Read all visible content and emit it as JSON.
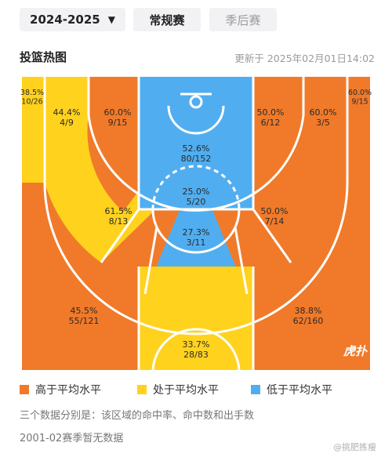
{
  "header": {
    "season_label": "2024-2025",
    "tab_regular": "常规赛",
    "tab_playoff": "季后赛"
  },
  "chart": {
    "title": "投篮热图",
    "updated": "更新于 2025年02月01日14:02"
  },
  "colors": {
    "above": "#f07a2a",
    "average": "#ffd21e",
    "below": "#50aef0"
  },
  "chart_data": {
    "type": "heatmap",
    "zones": [
      {
        "id": "left-corner-three",
        "pct": "38.5%",
        "made_attempts": "10/26",
        "level": "average"
      },
      {
        "id": "left-baseline-long-two",
        "pct": "44.4%",
        "made_attempts": "4/9",
        "level": "average"
      },
      {
        "id": "left-short-mid",
        "pct": "60.0%",
        "made_attempts": "9/15",
        "level": "above"
      },
      {
        "id": "restricted-area",
        "pct": "52.6%",
        "made_attempts": "80/152",
        "level": "below"
      },
      {
        "id": "paint-non-ra",
        "pct": "25.0%",
        "made_attempts": "5/20",
        "level": "below"
      },
      {
        "id": "right-short-mid",
        "pct": "50.0%",
        "made_attempts": "6/12",
        "level": "above"
      },
      {
        "id": "right-baseline-long-two",
        "pct": "60.0%",
        "made_attempts": "3/5",
        "level": "above"
      },
      {
        "id": "right-corner-three",
        "pct": "60.0%",
        "made_attempts": "9/15",
        "level": "above"
      },
      {
        "id": "left-elbow-mid",
        "pct": "61.5%",
        "made_attempts": "8/13",
        "level": "above"
      },
      {
        "id": "top-key-mid",
        "pct": "27.3%",
        "made_attempts": "3/11",
        "level": "below"
      },
      {
        "id": "right-elbow-mid",
        "pct": "50.0%",
        "made_attempts": "7/14",
        "level": "above"
      },
      {
        "id": "left-wing-three",
        "pct": "45.5%",
        "made_attempts": "55/121",
        "level": "above"
      },
      {
        "id": "top-three",
        "pct": "33.7%",
        "made_attempts": "28/83",
        "level": "average"
      },
      {
        "id": "right-wing-three",
        "pct": "38.8%",
        "made_attempts": "62/160",
        "level": "above"
      }
    ]
  },
  "court_logo": "虎扑",
  "legend": {
    "above": "高于平均水平",
    "average": "处于平均水平",
    "below": "低于平均水平"
  },
  "notes": {
    "line1": "三个数据分别是：该区域的命中率、命中数和出手数",
    "line2": "2001-02赛季暂无数据"
  },
  "watermark": "@挑肥拣瘦"
}
